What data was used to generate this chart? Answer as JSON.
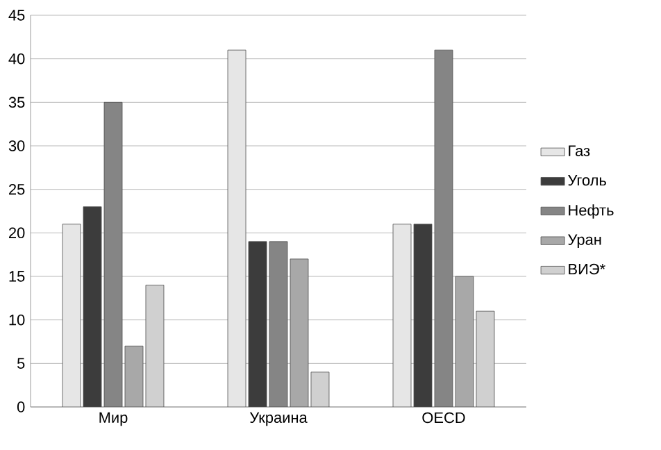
{
  "chart_data": {
    "type": "bar",
    "categories": [
      "Мир",
      "Украина",
      "OECD"
    ],
    "series": [
      {
        "name": "Газ",
        "color": "#e6e6e6",
        "values": [
          21,
          41,
          21
        ]
      },
      {
        "name": "Уголь",
        "color": "#3c3c3c",
        "values": [
          23,
          19,
          21
        ]
      },
      {
        "name": "Нефть",
        "color": "#858585",
        "values": [
          35,
          19,
          41
        ]
      },
      {
        "name": "Уран",
        "color": "#a8a8a8",
        "values": [
          7,
          17,
          15
        ]
      },
      {
        "name": "ВИЭ*",
        "color": "#d0d0d0",
        "values": [
          14,
          4,
          11
        ]
      }
    ],
    "ylim": [
      0,
      45
    ],
    "yticks": [
      0,
      5,
      10,
      15,
      20,
      25,
      30,
      35,
      40,
      45
    ],
    "grid": "y",
    "legend": "right"
  }
}
